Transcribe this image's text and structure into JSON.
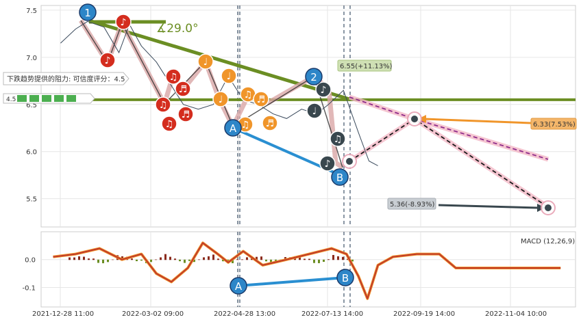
{
  "chart_data": [
    {
      "type": "line",
      "panel": "price",
      "ylim": [
        5.2,
        7.55
      ],
      "yticks": [
        "7.5",
        "7.0",
        "6.5",
        "6.0",
        "5.5"
      ],
      "ytick_values": [
        7.5,
        7.0,
        6.5,
        6.0,
        5.5
      ],
      "grid": true,
      "xlim": [
        "2021-12-28",
        "2022-12-20"
      ],
      "price_series": {
        "x": [
          "2022-01-10",
          "2022-01-20",
          "2022-01-28",
          "2022-02-08",
          "2022-02-18",
          "2022-02-25",
          "2022-03-05",
          "2022-03-15",
          "2022-03-25",
          "2022-04-02",
          "2022-04-12",
          "2022-04-22",
          "2022-05-02",
          "2022-05-12",
          "2022-05-22",
          "2022-06-01",
          "2022-06-10",
          "2022-06-20",
          "2022-06-30",
          "2022-07-08",
          "2022-07-18",
          "2022-07-28",
          "2022-08-04",
          "2022-08-10"
        ],
        "values": [
          7.15,
          7.3,
          7.38,
          7.32,
          7.05,
          7.35,
          7.12,
          6.95,
          6.7,
          6.5,
          6.45,
          6.5,
          6.8,
          6.55,
          6.5,
          6.4,
          6.35,
          6.45,
          6.4,
          6.5,
          6.65,
          6.2,
          5.9,
          5.85
        ]
      },
      "swing_markers": [
        {
          "label": "1",
          "x": "2022-01-28",
          "y": 7.48
        },
        {
          "label": "2",
          "x": "2022-07-18",
          "y": 6.73
        },
        {
          "label": "A",
          "x": "2022-05-02",
          "y": 6.24
        },
        {
          "label": "B",
          "x": "2022-08-04",
          "y": 5.71
        }
      ],
      "angle_label": "∡29.0°",
      "resistance_label": "下跌趋势提供的阻力: 可信度评分：4.5",
      "resistance_value": "4.5",
      "resistance_level": 6.55,
      "annotations": [
        {
          "text": "6.55(+11.13%)",
          "x": "2022-07-29",
          "y": 6.87
        },
        {
          "text": "6.33(7.53%)",
          "x": "2022-11-20",
          "y": 6.28
        },
        {
          "text": "5.36(-8.93%)",
          "x": "2022-09-05",
          "y": 5.4
        }
      ],
      "target_points": [
        {
          "x": "2022-08-12",
          "y": 5.87
        },
        {
          "x": "2022-09-20",
          "y": 6.33
        },
        {
          "x": "2022-12-10",
          "y": 5.36
        }
      ]
    },
    {
      "type": "line",
      "panel": "macd",
      "title": "MACD (12,26,9)",
      "ylim": [
        -0.17,
        0.1
      ],
      "yticks": [
        "0.0",
        "-0.1"
      ],
      "ytick_values": [
        0.0,
        -0.1
      ],
      "x_labels": [
        "2021-12-28 11:00",
        "2022-03-02 09:00",
        "2022-04-28 13:00",
        "2022-07-13 14:00",
        "2022-09-19 14:00",
        "2022-11-04 10:00"
      ],
      "macd_series": {
        "x": [
          "2022-01-05",
          "2022-01-20",
          "2022-02-05",
          "2022-02-20",
          "2022-03-05",
          "2022-03-15",
          "2022-03-25",
          "2022-04-05",
          "2022-04-15",
          "2022-04-25",
          "2022-05-02",
          "2022-05-12",
          "2022-05-25",
          "2022-06-10",
          "2022-06-25",
          "2022-07-10",
          "2022-07-20",
          "2022-07-28",
          "2022-08-03",
          "2022-08-10",
          "2022-08-20",
          "2022-09-05",
          "2022-09-20",
          "2022-10-01",
          "2022-11-01",
          "2022-12-10"
        ],
        "values": [
          0.01,
          0.02,
          0.04,
          0.0,
          0.02,
          -0.05,
          -0.08,
          -0.03,
          0.06,
          0.02,
          -0.01,
          0.03,
          -0.02,
          0.0,
          0.02,
          0.04,
          0.02,
          -0.06,
          -0.14,
          -0.02,
          0.01,
          0.02,
          0.02,
          -0.03,
          -0.03,
          -0.03
        ]
      },
      "markers": [
        {
          "label": "A",
          "x": "2022-05-02",
          "y": -0.095
        },
        {
          "label": "B",
          "x": "2022-08-04",
          "y": -0.07
        }
      ]
    }
  ],
  "colors": {
    "red_marker": "#d42d1e",
    "orange_marker": "#f0952a",
    "dark_marker": "#39474e",
    "blue_marker": "#2d86c8",
    "trend_green": "#6b8e23",
    "blue_line": "#2a8fd1",
    "pink_band": "#f2b8c6",
    "price_line": "#3a4a5c"
  },
  "icons": {
    "note_single": "♩",
    "note_eighth": "♪",
    "note_double": "♫",
    "note_beamed": "♬"
  }
}
